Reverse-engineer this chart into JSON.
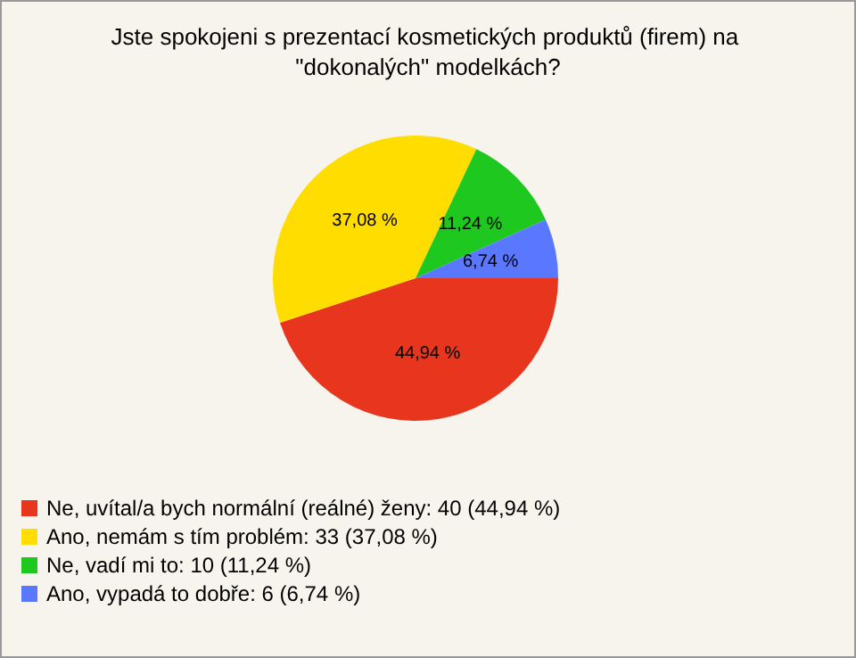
{
  "chart_data": {
    "type": "pie",
    "title": "Jste spokojeni s prezentací kosmetických produktů (firem) na \"dokonalých\" modelkách?",
    "categories": [
      "Ne, uvítal/a bych normální (reálné) ženy: 40 (44,94 %)",
      "Ano, nemám s tím problém: 33 (37,08 %)",
      "Ne, vadí mi to: 10 (11,24 %)",
      "Ano, vypadá to dobře: 6 (6,74 %)"
    ],
    "values": [
      44.94,
      37.08,
      11.24,
      6.74
    ],
    "value_labels": [
      "44,94 %",
      "37,08 %",
      "11,24 %",
      "6,74 %"
    ],
    "colors": [
      "#e8361e",
      "#ffdd00",
      "#1ec81e",
      "#5a78ff"
    ],
    "legend": "bottom left"
  }
}
